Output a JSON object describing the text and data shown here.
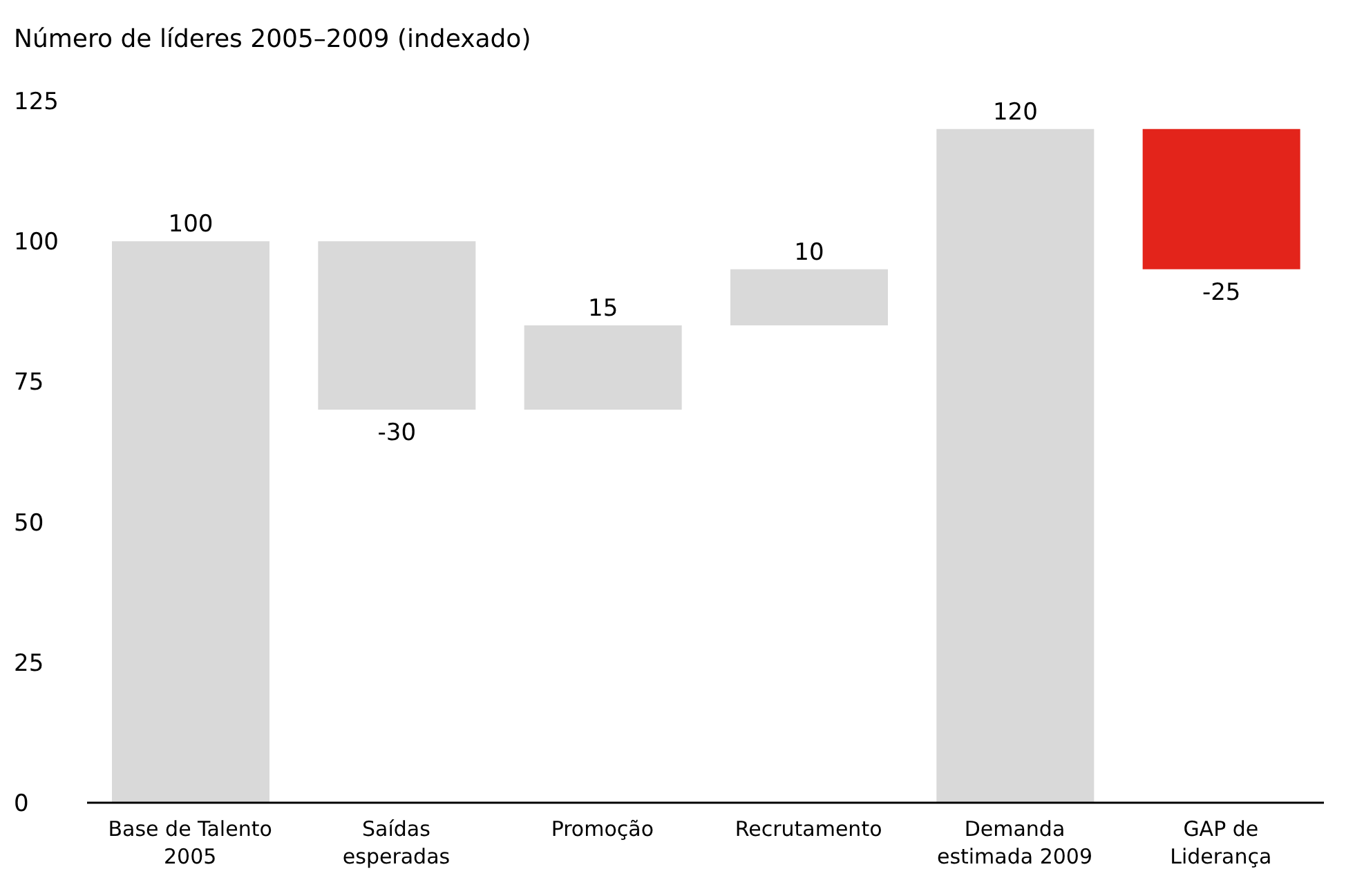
{
  "chart_data": {
    "type": "bar",
    "title": "Número de líderes 2005–2009 (indexado)",
    "categories": [
      "Base de Talento 2005",
      "Saídas esperadas",
      "Promoção",
      "Recrutamento",
      "Demanda estimada 2009",
      "GAP de Liderança"
    ],
    "values": [
      100,
      -30,
      15,
      10,
      120,
      -25
    ],
    "base": [
      0,
      100,
      70,
      85,
      0,
      120
    ],
    "colors": [
      "#d9d9d9",
      "#d9d9d9",
      "#d9d9d9",
      "#d9d9d9",
      "#d9d9d9",
      "#e3241b"
    ],
    "ylim": [
      0,
      125
    ],
    "yticks": [
      0,
      25,
      50,
      75,
      100,
      125
    ],
    "data_labels": true,
    "grid": false,
    "legend": false
  }
}
